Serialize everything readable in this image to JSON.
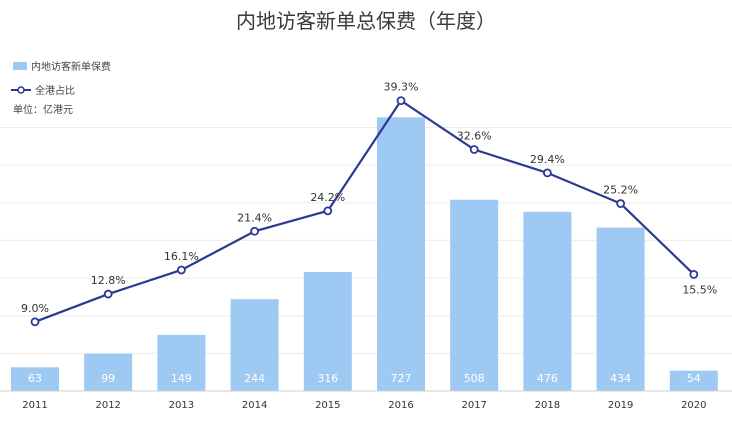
{
  "chart_data": {
    "type": "bar",
    "title": "内地访客新单总保费（年度）",
    "unit_note": "单位：亿港元",
    "categories": [
      "2011",
      "2012",
      "2013",
      "2014",
      "2015",
      "2016",
      "2017",
      "2018",
      "2019",
      "2020"
    ],
    "series": [
      {
        "name": "内地访客新单保费",
        "type": "bar",
        "values": [
          63,
          99,
          149,
          244,
          316,
          727,
          508,
          476,
          434,
          54
        ],
        "labels": [
          "63",
          "99",
          "149",
          "244",
          "316",
          "727",
          "508",
          "476",
          "434",
          "54"
        ],
        "color": "#9ec9f3"
      },
      {
        "name": "全港占比",
        "type": "line",
        "values": [
          9.0,
          12.8,
          16.1,
          21.4,
          24.2,
          39.3,
          32.6,
          29.4,
          25.2,
          15.5
        ],
        "labels": [
          "9.0%",
          "12.8%",
          "16.1%",
          "21.4%",
          "24.2%",
          "39.3%",
          "32.6%",
          "29.4%",
          "25.2%",
          "15.5%"
        ],
        "color": "#2b3990"
      }
    ],
    "bar_axis_range": [
      0,
      800
    ],
    "line_axis_range": [
      0,
      40
    ],
    "grid": "horizontal",
    "legend_position": "top-left"
  }
}
